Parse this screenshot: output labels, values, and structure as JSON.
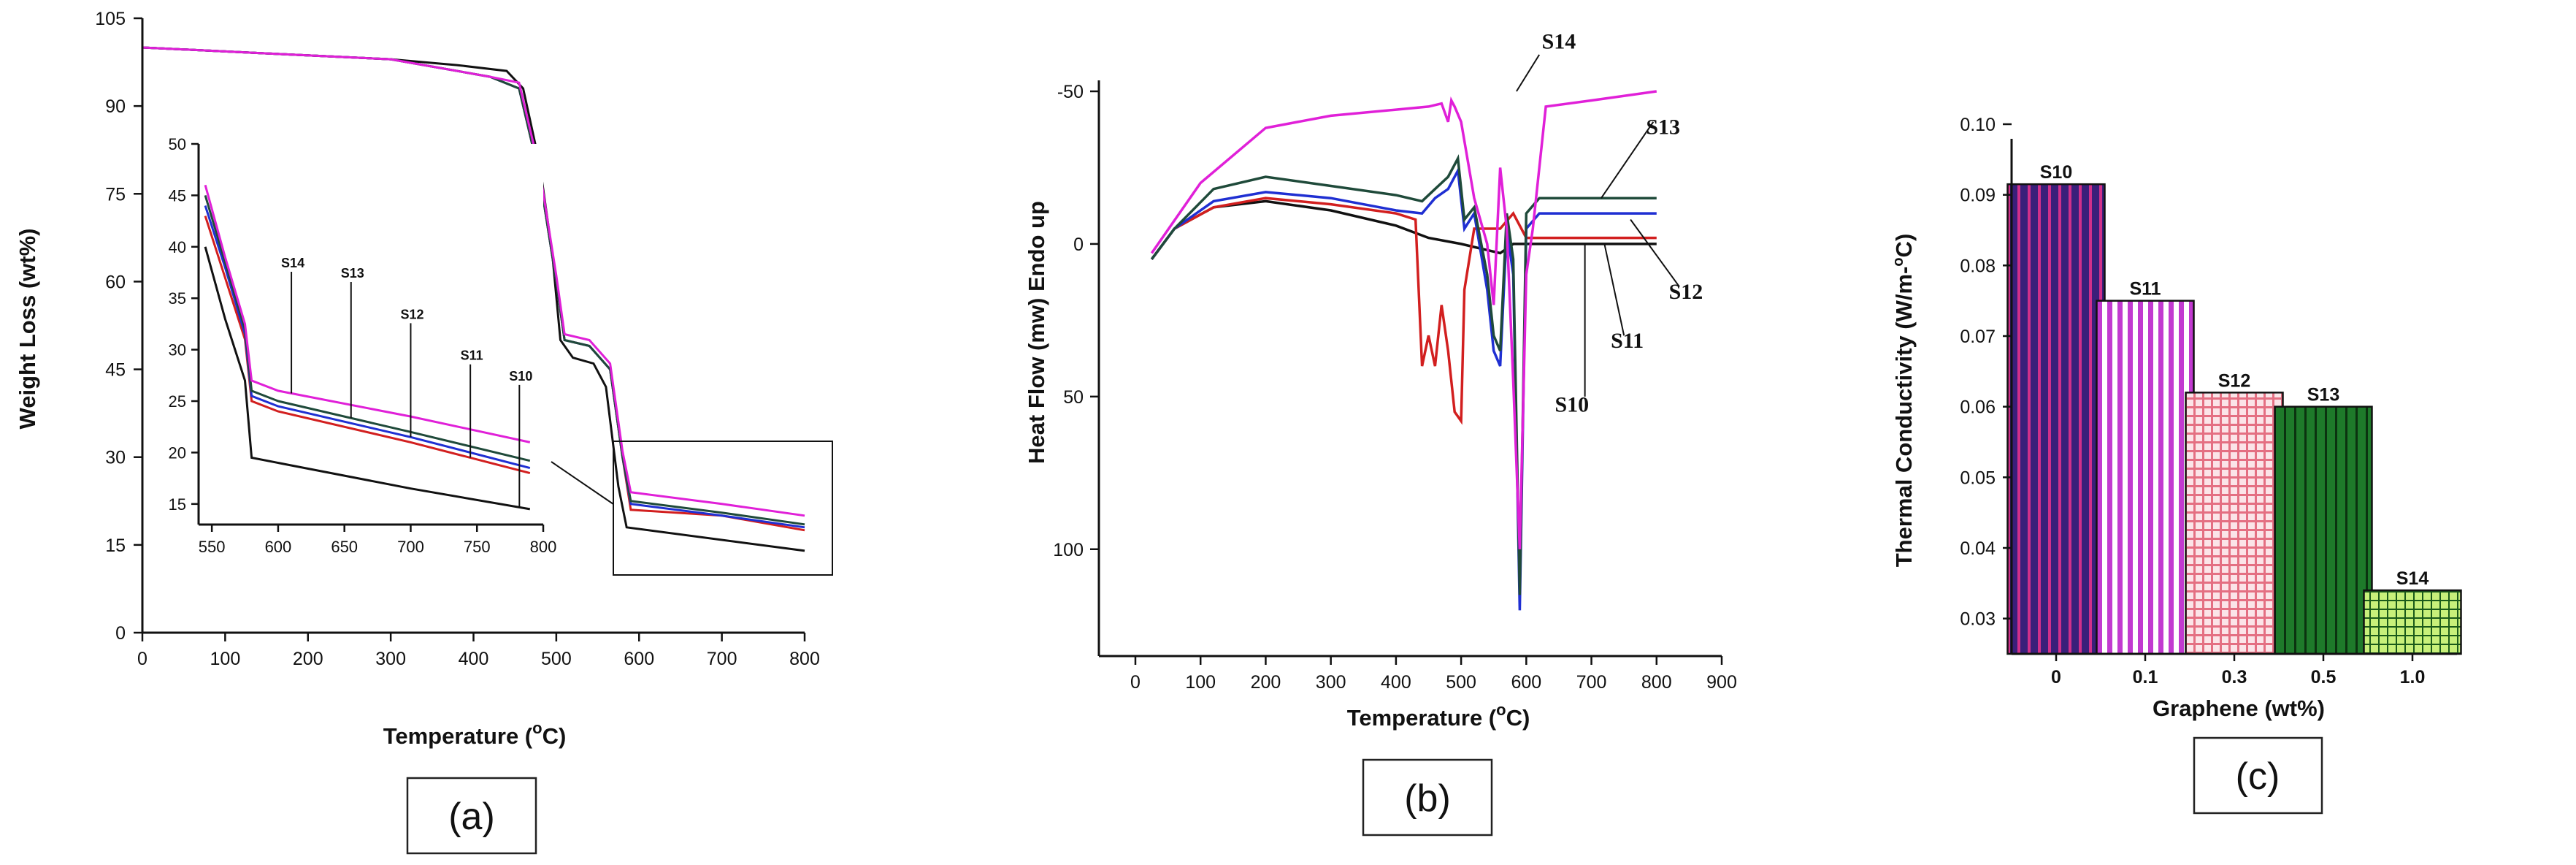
{
  "chart_data": [
    {
      "type": "line",
      "panel_label": "(a)",
      "title": "",
      "xlabel": "Temperature (",
      "xlabel_sup": "o",
      "xlabel_unit": "C)",
      "ylabel": "Weight Loss (wt%)",
      "xlim": [
        0,
        800
      ],
      "ylim": [
        0,
        105
      ],
      "xticks": [
        "0",
        "100",
        "200",
        "300",
        "400",
        "500",
        "600",
        "700",
        "800"
      ],
      "yticks": [
        "0",
        "15",
        "30",
        "45",
        "60",
        "75",
        "90",
        "105"
      ],
      "colors": {
        "S10": "#111111",
        "S11": "#d21f1f",
        "S12": "#1f2fd2",
        "S13": "#1f4a3a",
        "S14": "#e020d8"
      },
      "series": [
        {
          "name": "S10",
          "points": [
            [
              0,
              100
            ],
            [
              150,
              99
            ],
            [
              300,
              98
            ],
            [
              380,
              97
            ],
            [
              440,
              96
            ],
            [
              460,
              93
            ],
            [
              480,
              80
            ],
            [
              495,
              65
            ],
            [
              505,
              50
            ],
            [
              520,
              47
            ],
            [
              545,
              46
            ],
            [
              560,
              42
            ],
            [
              575,
              25
            ],
            [
              585,
              18
            ],
            [
              800,
              14
            ]
          ]
        },
        {
          "name": "S11",
          "points": [
            [
              0,
              100
            ],
            [
              150,
              99
            ],
            [
              300,
              98
            ],
            [
              420,
              95
            ],
            [
              455,
              93
            ],
            [
              480,
              78
            ],
            [
              500,
              60
            ],
            [
              510,
              50
            ],
            [
              540,
              49
            ],
            [
              565,
              45
            ],
            [
              580,
              30
            ],
            [
              590,
              21
            ],
            [
              700,
              20
            ],
            [
              800,
              17.5
            ]
          ]
        },
        {
          "name": "S12",
          "points": [
            [
              0,
              100
            ],
            [
              150,
              99
            ],
            [
              300,
              98
            ],
            [
              420,
              95
            ],
            [
              455,
              93
            ],
            [
              480,
              78
            ],
            [
              500,
              60
            ],
            [
              510,
              50
            ],
            [
              540,
              49
            ],
            [
              565,
              45
            ],
            [
              580,
              30
            ],
            [
              590,
              22
            ],
            [
              700,
              20
            ],
            [
              800,
              18
            ]
          ]
        },
        {
          "name": "S13",
          "points": [
            [
              0,
              100
            ],
            [
              150,
              99
            ],
            [
              300,
              98
            ],
            [
              420,
              95
            ],
            [
              455,
              93
            ],
            [
              480,
              78
            ],
            [
              500,
              60
            ],
            [
              510,
              50
            ],
            [
              540,
              49
            ],
            [
              565,
              45
            ],
            [
              580,
              30
            ],
            [
              590,
              22.5
            ],
            [
              700,
              20.5
            ],
            [
              800,
              18.5
            ]
          ]
        },
        {
          "name": "S14",
          "points": [
            [
              0,
              100
            ],
            [
              150,
              99
            ],
            [
              300,
              98
            ],
            [
              420,
              95
            ],
            [
              455,
              94
            ],
            [
              480,
              79
            ],
            [
              500,
              61
            ],
            [
              510,
              51
            ],
            [
              540,
              50
            ],
            [
              565,
              46
            ],
            [
              580,
              31
            ],
            [
              590,
              24
            ],
            [
              700,
              22
            ],
            [
              800,
              20
            ]
          ]
        }
      ],
      "inset": {
        "xlim": [
          540,
          800
        ],
        "ylim": [
          13,
          50
        ],
        "xticks": [
          "550",
          "600",
          "650",
          "700",
          "750",
          "800"
        ],
        "yticks": [
          "15",
          "20",
          "25",
          "30",
          "35",
          "40",
          "45",
          "50"
        ],
        "annotations": [
          {
            "label": "S14",
            "x": 610,
            "y": 38
          },
          {
            "label": "S13",
            "x": 655,
            "y": 37
          },
          {
            "label": "S12",
            "x": 700,
            "y": 33
          },
          {
            "label": "S11",
            "x": 745,
            "y": 29
          },
          {
            "label": "S10",
            "x": 782,
            "y": 27
          }
        ],
        "series": [
          {
            "name": "S10",
            "points": [
              [
                545,
                40
              ],
              [
                560,
                33
              ],
              [
                575,
                27
              ],
              [
                580,
                19.5
              ],
              [
                700,
                16.5
              ],
              [
                790,
                14.5
              ]
            ]
          },
          {
            "name": "S11",
            "points": [
              [
                545,
                43
              ],
              [
                560,
                37
              ],
              [
                575,
                31
              ],
              [
                580,
                25
              ],
              [
                600,
                24
              ],
              [
                700,
                21
              ],
              [
                790,
                18
              ]
            ]
          },
          {
            "name": "S12",
            "points": [
              [
                545,
                44
              ],
              [
                560,
                38
              ],
              [
                575,
                31.5
              ],
              [
                580,
                25.5
              ],
              [
                600,
                24.5
              ],
              [
                700,
                21.5
              ],
              [
                790,
                18.5
              ]
            ]
          },
          {
            "name": "S13",
            "points": [
              [
                545,
                45
              ],
              [
                560,
                38.5
              ],
              [
                575,
                32
              ],
              [
                580,
                26
              ],
              [
                600,
                25
              ],
              [
                700,
                22
              ],
              [
                790,
                19.2
              ]
            ]
          },
          {
            "name": "S14",
            "points": [
              [
                545,
                46
              ],
              [
                560,
                39
              ],
              [
                575,
                32.5
              ],
              [
                580,
                27
              ],
              [
                600,
                26
              ],
              [
                700,
                23.5
              ],
              [
                790,
                21
              ]
            ]
          }
        ]
      }
    },
    {
      "type": "line",
      "panel_label": "(b)",
      "title": "",
      "xlabel": "Temperature (",
      "xlabel_sup": "o",
      "xlabel_unit": "C)",
      "ylabel": "Heat Flow (mw) Endo up",
      "xlim": [
        0,
        900
      ],
      "ylim": [
        -50,
        135
      ],
      "xticks": [
        "0",
        "100",
        "200",
        "300",
        "400",
        "500",
        "600",
        "700",
        "800",
        "900"
      ],
      "yticks": [
        "-50",
        "0",
        "50",
        "100"
      ],
      "colors": {
        "S10": "#111111",
        "S11": "#d21f1f",
        "S12": "#1f2fd2",
        "S13": "#1f4a3a",
        "S14": "#e020d8"
      },
      "labels": [
        {
          "label": "S14",
          "x": 650,
          "y": -64
        },
        {
          "label": "S13",
          "x": 810,
          "y": -36
        },
        {
          "label": "S12",
          "x": 845,
          "y": 18
        },
        {
          "label": "S11",
          "x": 755,
          "y": 34
        },
        {
          "label": "S10",
          "x": 670,
          "y": 55
        }
      ],
      "series": [
        {
          "name": "S10",
          "points": [
            [
              25,
              5
            ],
            [
              60,
              -5
            ],
            [
              120,
              -12
            ],
            [
              200,
              -14
            ],
            [
              300,
              -11
            ],
            [
              400,
              -6
            ],
            [
              450,
              -2
            ],
            [
              500,
              0
            ],
            [
              540,
              2
            ],
            [
              560,
              3
            ],
            [
              580,
              0
            ],
            [
              600,
              0
            ],
            [
              800,
              0
            ]
          ]
        },
        {
          "name": "S11",
          "points": [
            [
              25,
              5
            ],
            [
              60,
              -5
            ],
            [
              120,
              -12
            ],
            [
              200,
              -15
            ],
            [
              300,
              -13
            ],
            [
              400,
              -10
            ],
            [
              430,
              -8
            ],
            [
              440,
              40
            ],
            [
              450,
              30
            ],
            [
              460,
              40
            ],
            [
              470,
              20
            ],
            [
              480,
              35
            ],
            [
              490,
              55
            ],
            [
              500,
              58
            ],
            [
              505,
              15
            ],
            [
              520,
              -5
            ],
            [
              560,
              -5
            ],
            [
              580,
              -10
            ],
            [
              600,
              -2
            ],
            [
              800,
              -2
            ]
          ]
        },
        {
          "name": "S12",
          "points": [
            [
              25,
              5
            ],
            [
              60,
              -5
            ],
            [
              120,
              -14
            ],
            [
              200,
              -17
            ],
            [
              300,
              -15
            ],
            [
              400,
              -11
            ],
            [
              440,
              -10
            ],
            [
              460,
              -15
            ],
            [
              480,
              -18
            ],
            [
              495,
              -24
            ],
            [
              505,
              -5
            ],
            [
              520,
              -10
            ],
            [
              540,
              15
            ],
            [
              550,
              35
            ],
            [
              560,
              40
            ],
            [
              570,
              -5
            ],
            [
              580,
              10
            ],
            [
              590,
              120
            ],
            [
              600,
              -5
            ],
            [
              620,
              -10
            ],
            [
              800,
              -10
            ]
          ]
        },
        {
          "name": "S13",
          "points": [
            [
              25,
              5
            ],
            [
              60,
              -5
            ],
            [
              120,
              -18
            ],
            [
              200,
              -22
            ],
            [
              300,
              -19
            ],
            [
              400,
              -16
            ],
            [
              440,
              -14
            ],
            [
              460,
              -18
            ],
            [
              480,
              -22
            ],
            [
              495,
              -28
            ],
            [
              505,
              -8
            ],
            [
              520,
              -12
            ],
            [
              540,
              10
            ],
            [
              550,
              30
            ],
            [
              560,
              35
            ],
            [
              570,
              -10
            ],
            [
              580,
              5
            ],
            [
              590,
              115
            ],
            [
              600,
              -10
            ],
            [
              620,
              -15
            ],
            [
              800,
              -15
            ]
          ]
        },
        {
          "name": "S14",
          "points": [
            [
              25,
              3
            ],
            [
              100,
              -20
            ],
            [
              200,
              -38
            ],
            [
              300,
              -42
            ],
            [
              400,
              -44
            ],
            [
              450,
              -45
            ],
            [
              470,
              -46
            ],
            [
              480,
              -40
            ],
            [
              485,
              -47
            ],
            [
              490,
              -45
            ],
            [
              500,
              -40
            ],
            [
              520,
              -15
            ],
            [
              540,
              0
            ],
            [
              550,
              20
            ],
            [
              560,
              -25
            ],
            [
              570,
              -5
            ],
            [
              580,
              45
            ],
            [
              590,
              100
            ],
            [
              600,
              10
            ],
            [
              610,
              -5
            ],
            [
              630,
              -45
            ],
            [
              700,
              -47
            ],
            [
              800,
              -50
            ]
          ]
        }
      ]
    },
    {
      "type": "bar",
      "panel_label": "(c)",
      "title": "",
      "xlabel": "Graphene (wt%)",
      "ylabel": "Thermal Conductivity (W/m-",
      "ylabel_sup": "o",
      "ylabel_unit": "C)",
      "ylim": [
        0.025,
        0.1
      ],
      "yticks": [
        "0.03",
        "0.04",
        "0.05",
        "0.06",
        "0.07",
        "0.08",
        "0.09",
        "0.10"
      ],
      "categories": [
        "0",
        "0.1",
        "0.3",
        "0.5",
        "1.0"
      ],
      "bar_labels": [
        "S10",
        "S11",
        "S12",
        "S13",
        "S14"
      ],
      "values": [
        0.0915,
        0.075,
        0.062,
        0.06,
        0.034
      ],
      "bar_colors": [
        "#3a1f7a",
        "#c23ad0",
        "#e89aa8",
        "#1e7a2a",
        "#c8f07a"
      ],
      "bar_stripe_colors": [
        "#d0308a",
        "#ffffff",
        "#ffffff",
        "#0b3310",
        "#1a5a1a"
      ]
    }
  ]
}
